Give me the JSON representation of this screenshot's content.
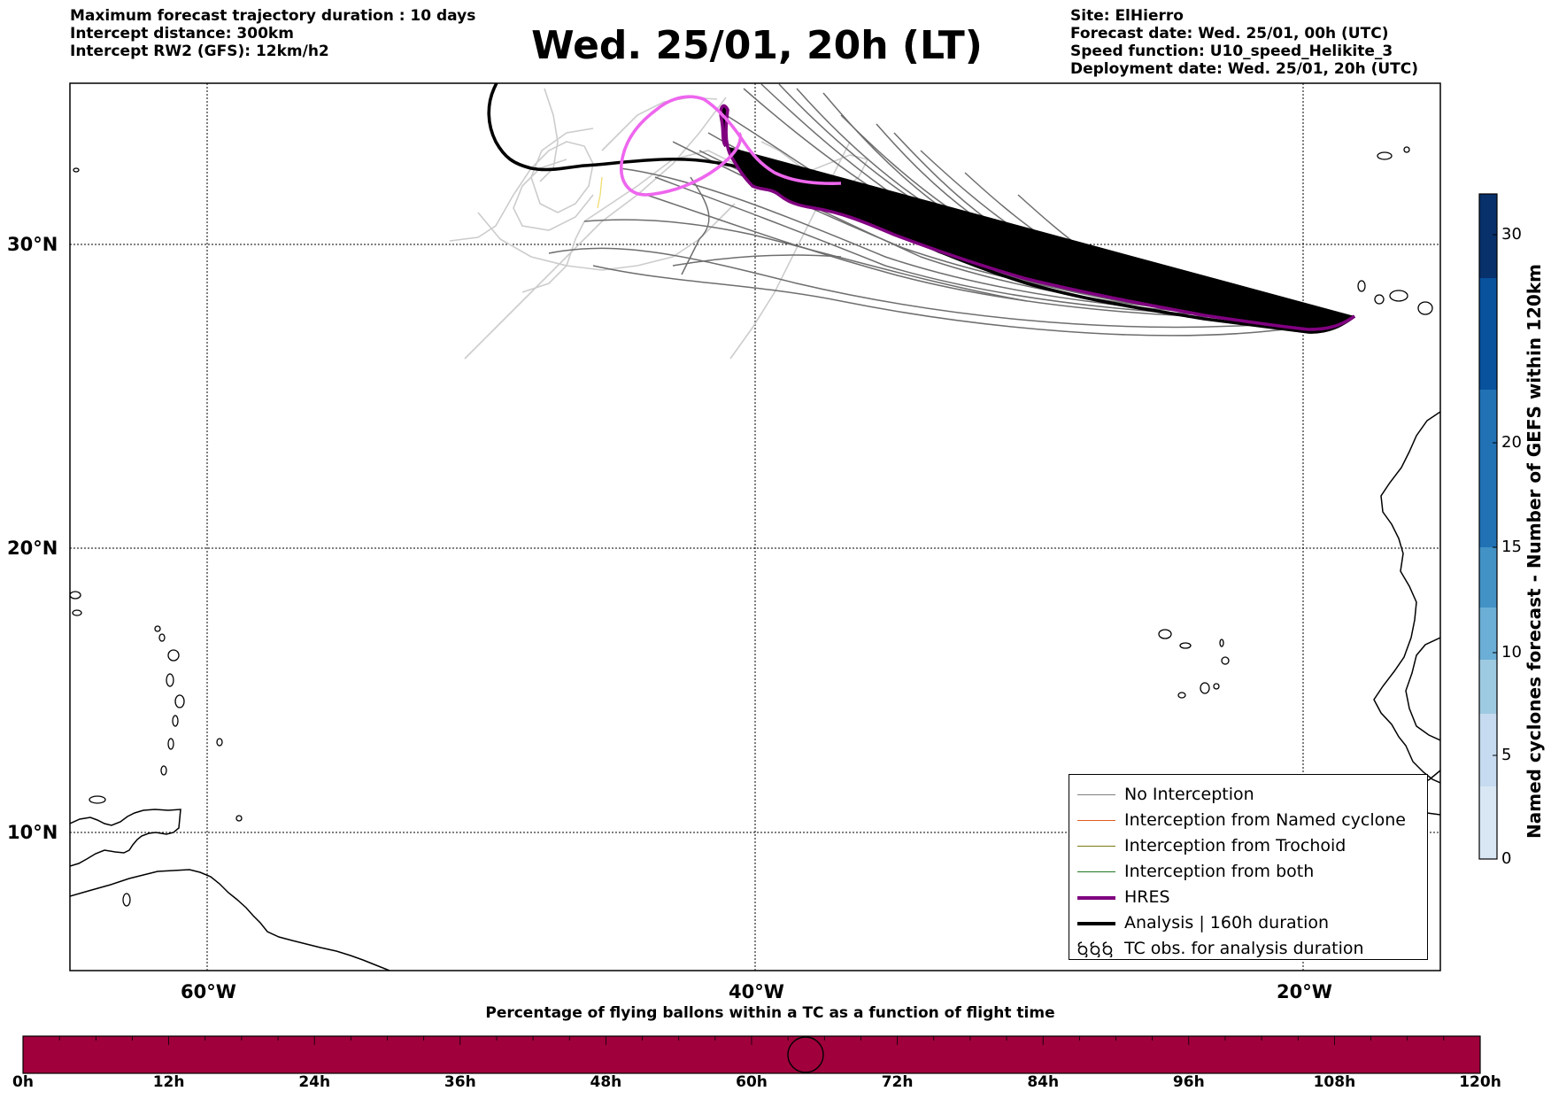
{
  "header_left": {
    "line1": "Maximum forecast trajectory duration : 10 days",
    "line2": "Intercept distance: 300km",
    "line3": "Intercept RW2 (GFS):  12km/h2"
  },
  "title": "Wed. 25/01, 20h (LT)",
  "header_right": {
    "site": "Site: ElHierro",
    "forecast_date": "Forecast date: Wed. 25/01, 00h (UTC)",
    "speed_function": "Speed function: U10_speed_Helikite_3",
    "deployment_date": "Deployment date: Wed. 25/01, 20h (UTC)"
  },
  "map": {
    "lon_range": [
      -65,
      15
    ],
    "lat_range": [
      5,
      35
    ],
    "lat_labels": [
      "30°N",
      "20°N",
      "10°N"
    ],
    "lon_labels": [
      "60°W",
      "40°W",
      "20°W"
    ],
    "gridlines": "dotted"
  },
  "legend": {
    "items": [
      {
        "label": "No Interception",
        "color": "#7f7f7f",
        "style": "thin-line"
      },
      {
        "label": "Interception from Named cyclone",
        "color": "#e05a1e",
        "style": "thin-line"
      },
      {
        "label": "Interception from Trochoid",
        "color": "#7a7a10",
        "style": "thin-line"
      },
      {
        "label": "Interception from both",
        "color": "#1f7a1f",
        "style": "thin-line"
      },
      {
        "label": "HRES",
        "color": "#800080",
        "style": "thick-line"
      },
      {
        "label": "Analysis | 160h duration",
        "color": "#000000",
        "style": "thick-line"
      },
      {
        "label": "TC obs. for analysis duration",
        "color": "#000000",
        "style": "cyclone-symbols"
      }
    ]
  },
  "colorbar": {
    "title": "Named cyclones forecast - Number of GEFS within 120km",
    "ticks": [
      "0",
      "5",
      "10",
      "15",
      "20",
      "30"
    ],
    "colors": [
      "#d9e7f5",
      "#c6dbef",
      "#9ecae1",
      "#6baed6",
      "#4292c6",
      "#2171b5",
      "#08519c",
      "#08306b"
    ]
  },
  "flight_bar": {
    "title": "Percentage of flying ballons within a TC as a function of flight time",
    "ticks": [
      "0h",
      "12h",
      "24h",
      "36h",
      "48h",
      "60h",
      "72h",
      "84h",
      "96h",
      "108h",
      "120h"
    ],
    "color": "#a0003c"
  }
}
